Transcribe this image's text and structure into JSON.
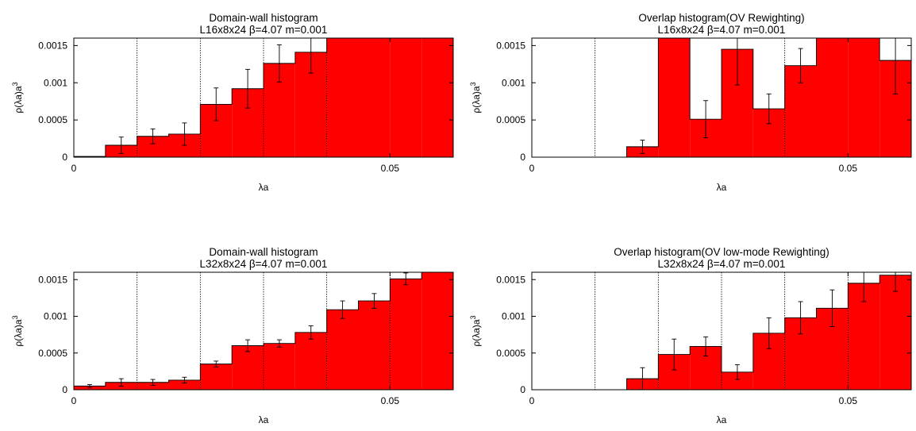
{
  "chart_data": [
    {
      "type": "bar",
      "title": "Domain-wall histogram",
      "subtitle": "L16x8x24 β=4.07 m=0.001",
      "xlabel": "λa",
      "ylabel": "ρ(λa)a",
      "ylabel_sup": "3",
      "xlim": [
        0,
        0.06
      ],
      "ylim": [
        0,
        0.0016
      ],
      "xticks": [
        {
          "v": 0,
          "label": "0"
        },
        {
          "v": 0.05,
          "label": "0.05"
        }
      ],
      "yticks": [
        {
          "v": 0,
          "label": "0"
        },
        {
          "v": 0.0005,
          "label": "0.0005"
        },
        {
          "v": 0.001,
          "label": "0.001"
        },
        {
          "v": 0.0015,
          "label": "0.0015"
        }
      ],
      "vlines": [
        0.01,
        0.02,
        0.03,
        0.04
      ],
      "bin_width": 0.005,
      "bins": [
        0,
        0.005,
        0.01,
        0.015,
        0.02,
        0.025,
        0.03,
        0.035,
        0.04,
        0.045,
        0.05,
        0.055
      ],
      "values": [
        1e-05,
        0.00016,
        0.00028,
        0.00031,
        0.00071,
        0.00092,
        0.00126,
        0.00141,
        0.0016,
        0.0016,
        0.0016,
        0.0016
      ],
      "errors": [
        0,
        0.00011,
        0.0001,
        0.00015,
        0.00022,
        0.00026,
        0.00025,
        0.00028,
        null,
        null,
        null,
        null
      ],
      "color": "#ff0000"
    },
    {
      "type": "bar",
      "title": "Overlap histogram(OV Rewighting)",
      "subtitle": "L16x8x24 β=4.07 m=0.001",
      "xlabel": "λa",
      "ylabel": "ρ(λa)a",
      "ylabel_sup": "3",
      "xlim": [
        0,
        0.06
      ],
      "ylim": [
        0,
        0.0016
      ],
      "xticks": [
        {
          "v": 0,
          "label": "0"
        },
        {
          "v": 0.05,
          "label": "0.05"
        }
      ],
      "yticks": [
        {
          "v": 0,
          "label": "0"
        },
        {
          "v": 0.0005,
          "label": "0.0005"
        },
        {
          "v": 0.001,
          "label": "0.001"
        },
        {
          "v": 0.0015,
          "label": "0.0015"
        }
      ],
      "vlines": [
        0.01,
        0.04
      ],
      "bin_width": 0.005,
      "bins": [
        0,
        0.005,
        0.01,
        0.015,
        0.02,
        0.025,
        0.03,
        0.035,
        0.04,
        0.045,
        0.05,
        0.055
      ],
      "values": [
        0.0,
        0.0,
        0.0,
        0.00014,
        0.0016,
        0.00051,
        0.00145,
        0.00065,
        0.00123,
        0.0016,
        0.0016,
        0.0013
      ],
      "errors": [
        0,
        0,
        0,
        9e-05,
        null,
        0.00025,
        0.00048,
        0.0002,
        0.00023,
        null,
        null,
        0.00045
      ],
      "color": "#ff0000"
    },
    {
      "type": "bar",
      "title": "Domain-wall histogram",
      "subtitle": "L32x8x24 β=4.07 m=0.001",
      "xlabel": "λa",
      "ylabel": "ρ(λa)a",
      "ylabel_sup": "3",
      "xlim": [
        0,
        0.06
      ],
      "ylim": [
        0,
        0.0016
      ],
      "xticks": [
        {
          "v": 0,
          "label": "0"
        },
        {
          "v": 0.05,
          "label": "0.05"
        }
      ],
      "yticks": [
        {
          "v": 0,
          "label": "0"
        },
        {
          "v": 0.0005,
          "label": "0.0005"
        },
        {
          "v": 0.001,
          "label": "0.001"
        },
        {
          "v": 0.0015,
          "label": "0.0015"
        }
      ],
      "vlines": [
        0.01,
        0.02,
        0.03,
        0.04,
        0.05
      ],
      "bin_width": 0.005,
      "bins": [
        0,
        0.005,
        0.01,
        0.015,
        0.02,
        0.025,
        0.03,
        0.035,
        0.04,
        0.045,
        0.05,
        0.055
      ],
      "values": [
        5e-05,
        0.0001,
        0.0001,
        0.00013,
        0.00035,
        0.0006,
        0.00063,
        0.00078,
        0.00109,
        0.00121,
        0.00151,
        0.0016
      ],
      "errors": [
        2e-05,
        5e-05,
        4e-05,
        4e-05,
        4e-05,
        8e-05,
        5e-05,
        9e-05,
        0.00012,
        0.0001,
        8e-05,
        null
      ],
      "color": "#ff0000"
    },
    {
      "type": "bar",
      "title": "Overlap histogram(OV low-mode Rewighting)",
      "subtitle": "L32x8x24 β=4.07 m=0.001",
      "xlabel": "λa",
      "ylabel": "ρ(λa)a",
      "ylabel_sup": "3",
      "xlim": [
        0,
        0.06
      ],
      "ylim": [
        0,
        0.0016
      ],
      "xticks": [
        {
          "v": 0,
          "label": "0"
        },
        {
          "v": 0.05,
          "label": "0.05"
        }
      ],
      "yticks": [
        {
          "v": 0,
          "label": "0"
        },
        {
          "v": 0.0005,
          "label": "0.0005"
        },
        {
          "v": 0.001,
          "label": "0.001"
        },
        {
          "v": 0.0015,
          "label": "0.0015"
        }
      ],
      "vlines": [
        0.01,
        0.02,
        0.03,
        0.04,
        0.05
      ],
      "bin_width": 0.005,
      "bins": [
        0,
        0.005,
        0.01,
        0.015,
        0.02,
        0.025,
        0.03,
        0.035,
        0.04,
        0.045,
        0.05,
        0.055
      ],
      "values": [
        0.0,
        0.0,
        0.0,
        0.00015,
        0.00048,
        0.00059,
        0.00024,
        0.00077,
        0.00098,
        0.00111,
        0.00145,
        0.00156
      ],
      "errors": [
        0,
        0,
        0,
        0.00015,
        0.00021,
        0.00013,
        0.0001,
        0.00021,
        0.00022,
        0.00025,
        0.00025,
        0.00022
      ],
      "color": "#ff0000"
    }
  ]
}
